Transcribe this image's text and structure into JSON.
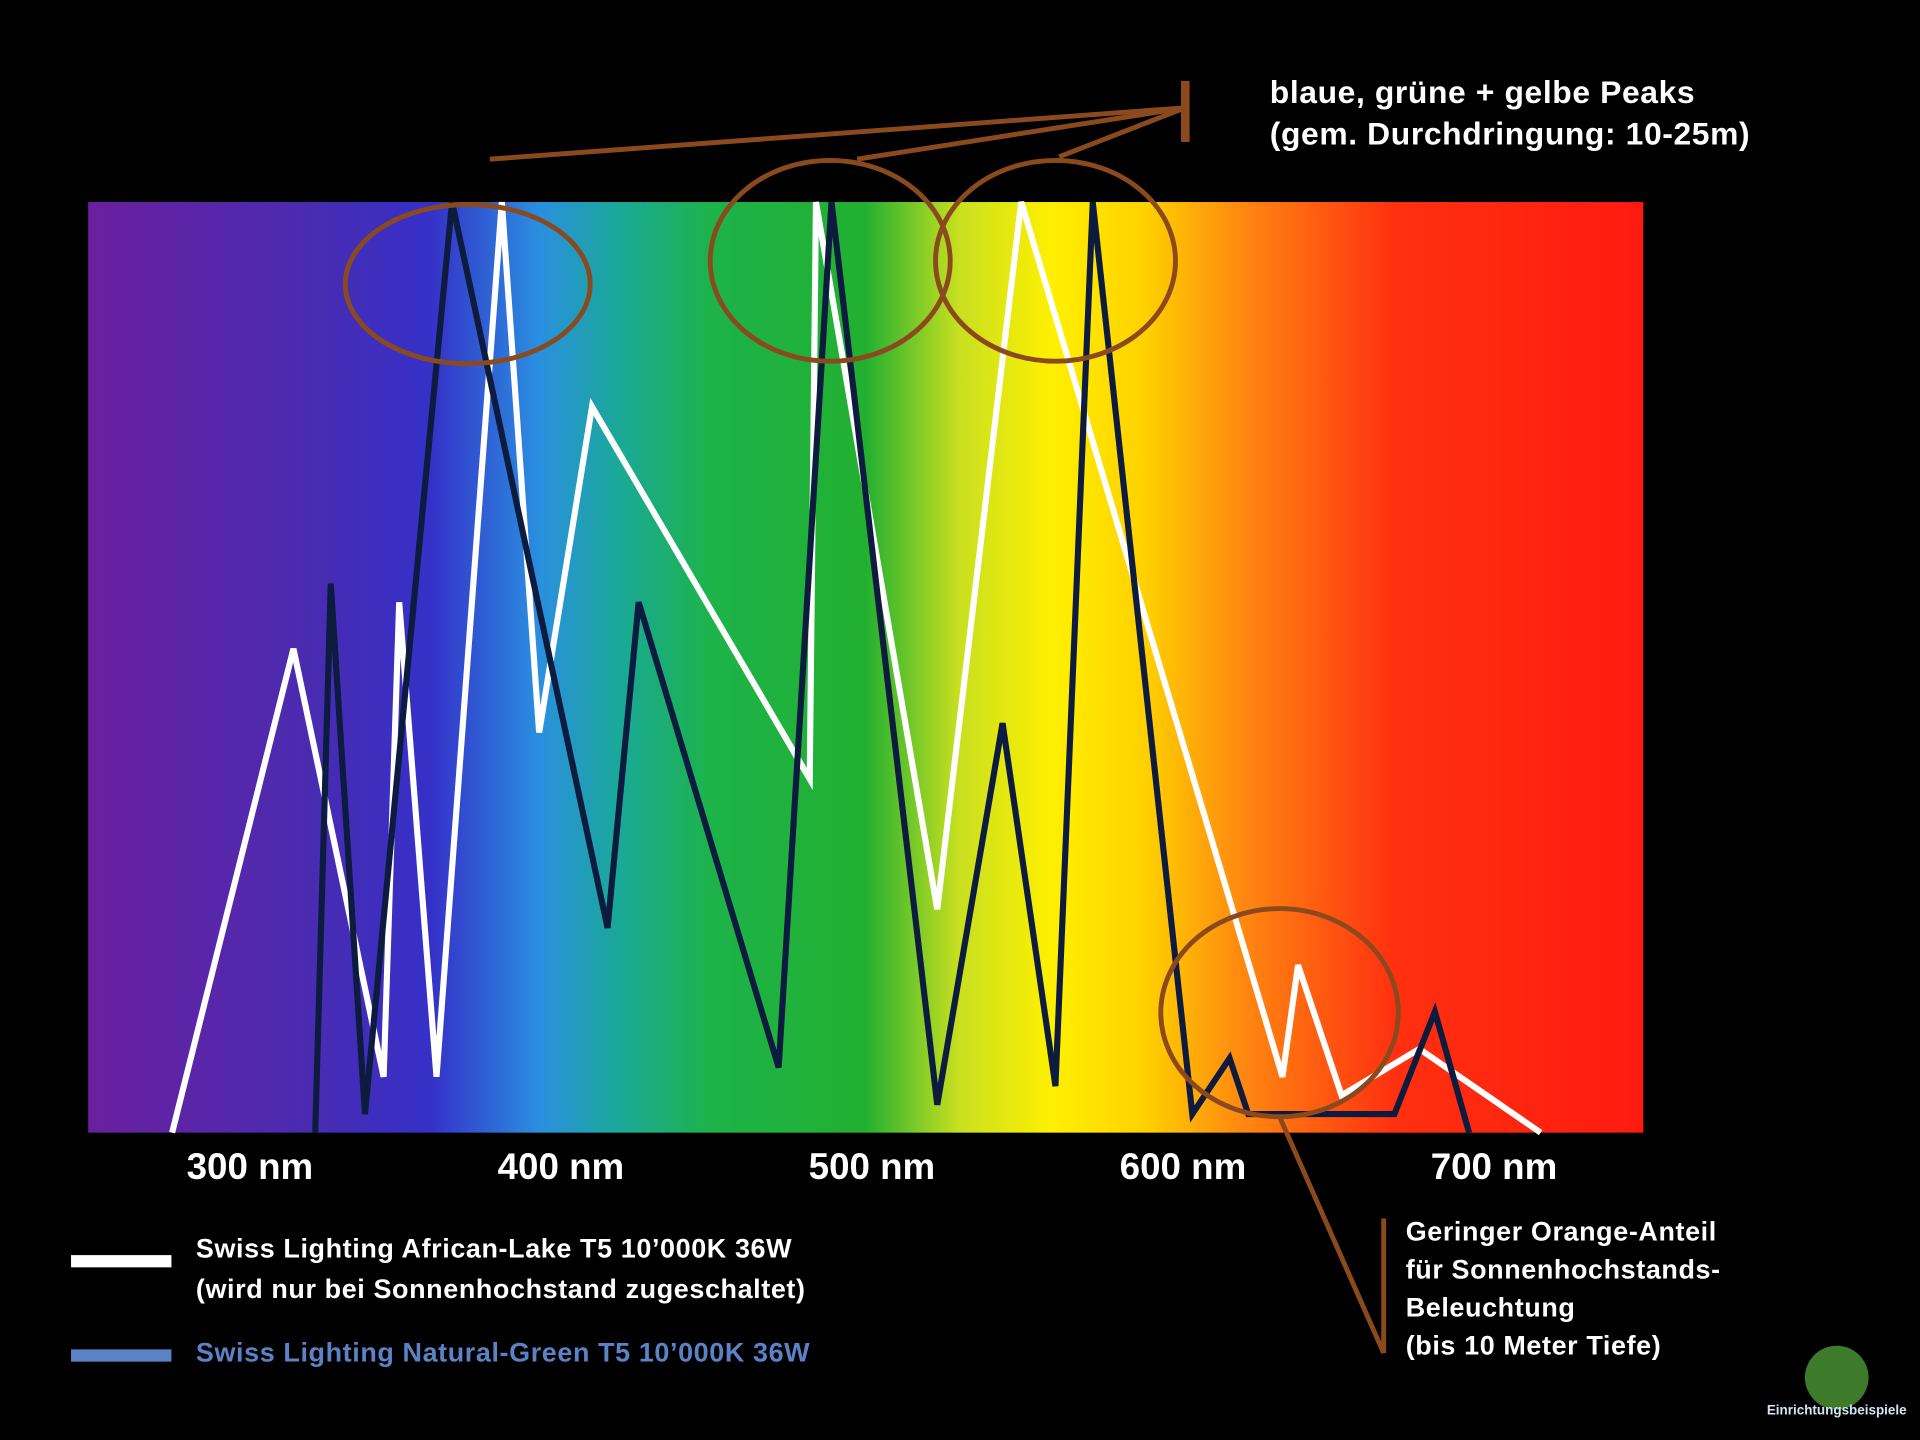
{
  "chart_data": {
    "type": "line",
    "xticks": [
      {
        "value": 300,
        "label": "300 nm"
      },
      {
        "value": 400,
        "label": "400 nm"
      },
      {
        "value": 500,
        "label": "500 nm"
      },
      {
        "value": 600,
        "label": "600 nm"
      },
      {
        "value": 700,
        "label": "700 nm"
      }
    ],
    "xlim": [
      248,
      748
    ],
    "ylim": [
      0,
      100
    ],
    "series": [
      {
        "name": "Swiss Lighting African-Lake T5 10’000K 36W",
        "note": "(wird nur bei Sonnenhochstand zugeschaltet)",
        "color": "#ffffff",
        "legend_color": "#ffffff",
        "x": [
          275,
          314,
          343,
          348,
          360,
          381,
          393,
          410,
          480,
          482,
          521,
          548,
          632,
          637,
          651,
          676,
          715
        ],
        "values": [
          0,
          52,
          6,
          57,
          6,
          100,
          43,
          78,
          38,
          100,
          24,
          100,
          6,
          18,
          4,
          9,
          0
        ]
      },
      {
        "name": "Swiss Lighting Natural-Green T5 10’000K 36W",
        "color": "#0d1b3e",
        "legend_color": "#5b82c6",
        "x": [
          321,
          326,
          337,
          365,
          415,
          425,
          470,
          487,
          521,
          542,
          559,
          571,
          603,
          615,
          621,
          668,
          681,
          692
        ],
        "values": [
          0,
          59,
          2,
          100,
          22,
          57,
          7,
          100,
          3,
          44,
          5,
          100,
          2,
          8,
          2,
          2,
          13,
          0
        ]
      }
    ],
    "annotations": [
      {
        "lines": [
          "blaue, grüne + gelbe Peaks",
          "(gem. Durchdringung: 10-25m)"
        ]
      },
      {
        "lines": [
          "Geringer Orange-Anteil",
          "für Sonnenhochstands-",
          "Beleuchtung",
          "(bis 10 Meter Tiefe)"
        ]
      }
    ],
    "watermark": "Einrichtungsbeispiele"
  }
}
